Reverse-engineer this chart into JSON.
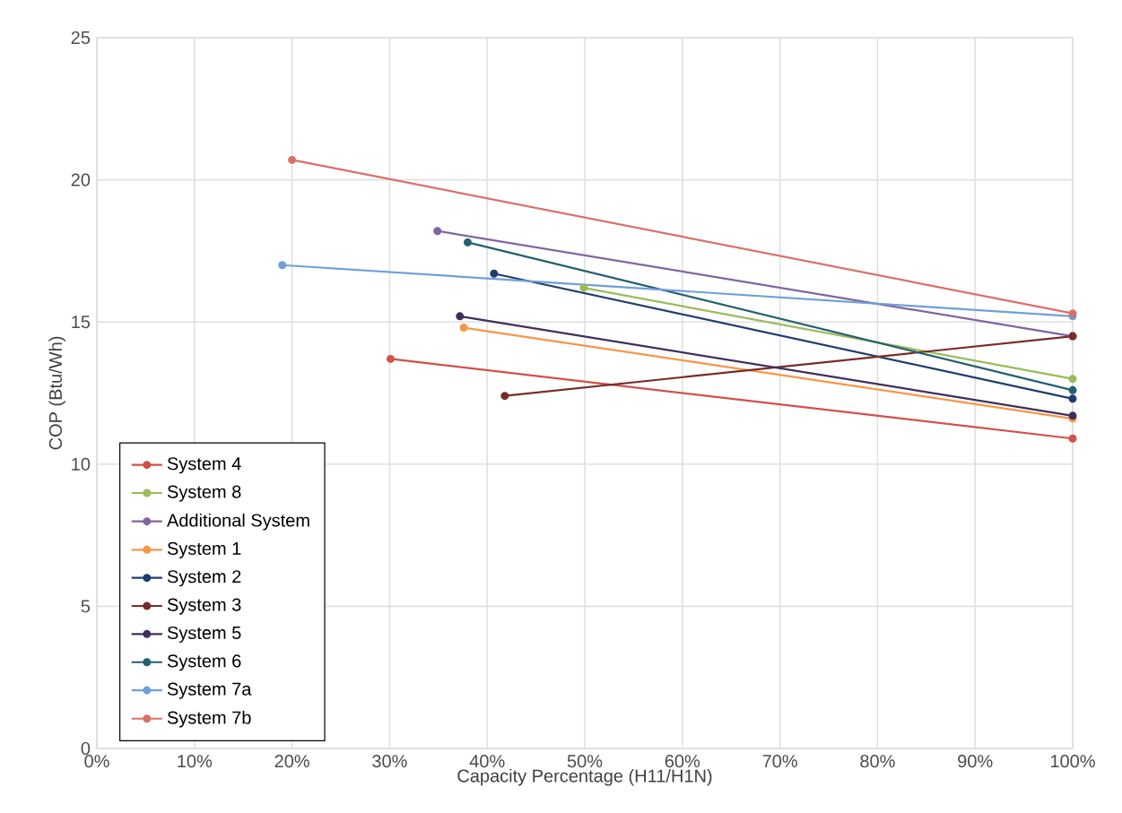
{
  "chart_data": {
    "type": "line",
    "xlabel": "Capacity Percentage (H11/H1N)",
    "ylabel": "COP (Btu/Wh)",
    "xlim": [
      0,
      100
    ],
    "ylim": [
      0,
      25
    ],
    "xticks": [
      {
        "value": 0,
        "label": "0%"
      },
      {
        "value": 10,
        "label": "10%"
      },
      {
        "value": 20,
        "label": "20%"
      },
      {
        "value": 30,
        "label": "30%"
      },
      {
        "value": 40,
        "label": "40%"
      },
      {
        "value": 50,
        "label": "50%"
      },
      {
        "value": 60,
        "label": "60%"
      },
      {
        "value": 70,
        "label": "70%"
      },
      {
        "value": 80,
        "label": "80%"
      },
      {
        "value": 90,
        "label": "90%"
      },
      {
        "value": 100,
        "label": "100%"
      }
    ],
    "yticks": [
      0,
      5,
      10,
      15,
      20,
      25
    ],
    "grid": true,
    "legend": "bottom left",
    "marker": "circle",
    "line_style": "solid",
    "series": [
      {
        "name": "System 4",
        "color": "#d0504a",
        "x": [
          30.1,
          100
        ],
        "values": [
          13.7,
          10.9
        ]
      },
      {
        "name": "System 8",
        "color": "#9bbb59",
        "x": [
          49.9,
          100
        ],
        "values": [
          16.2,
          13.0
        ]
      },
      {
        "name": "Additional System",
        "color": "#8064a2",
        "x": [
          34.9,
          100
        ],
        "values": [
          18.2,
          14.5
        ]
      },
      {
        "name": "System 1",
        "color": "#f79646",
        "x": [
          37.6,
          100
        ],
        "values": [
          14.8,
          11.6
        ]
      },
      {
        "name": "System 2",
        "color": "#1f3d6e",
        "x": [
          40.7,
          100
        ],
        "values": [
          16.7,
          12.3
        ]
      },
      {
        "name": "System 3",
        "color": "#772c2a",
        "x": [
          41.8,
          100
        ],
        "values": [
          12.4,
          14.5
        ]
      },
      {
        "name": "System 5",
        "color": "#3f2e5c",
        "x": [
          37.2,
          100
        ],
        "values": [
          15.2,
          11.7
        ]
      },
      {
        "name": "System 6",
        "color": "#23606e",
        "x": [
          38.0,
          100
        ],
        "values": [
          17.8,
          12.6
        ]
      },
      {
        "name": "System 7a",
        "color": "#6f9fd8",
        "x": [
          19.0,
          100
        ],
        "values": [
          17.0,
          15.2
        ]
      },
      {
        "name": "System 7b",
        "color": "#d9706a",
        "x": [
          20.0,
          100
        ],
        "values": [
          20.7,
          15.3
        ]
      }
    ]
  }
}
